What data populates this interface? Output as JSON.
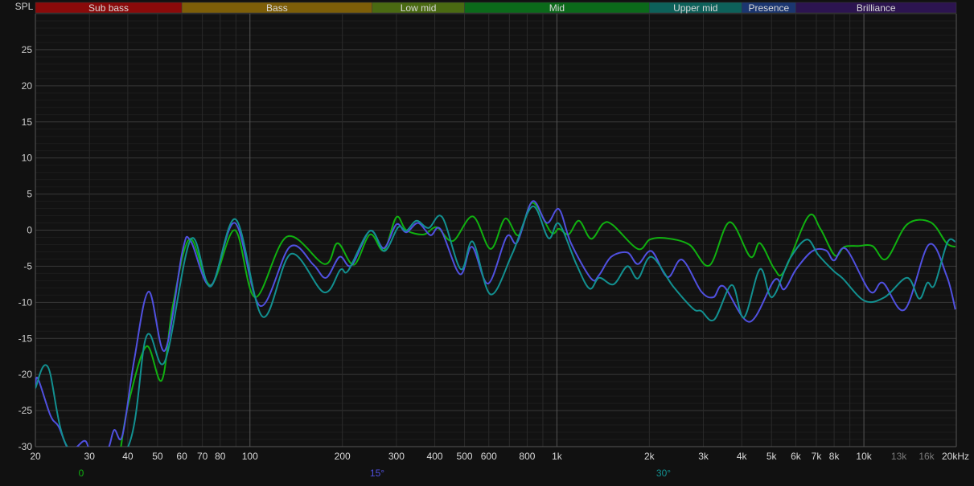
{
  "chart_data": {
    "type": "line",
    "ylabel": "SPL",
    "x_scale": "log",
    "xlim": [
      20,
      20000
    ],
    "ylim": [
      -30,
      30
    ],
    "grid": true,
    "y_ticks": [
      25,
      20,
      15,
      10,
      5,
      0,
      -5,
      -10,
      -15,
      -20,
      -25,
      -30
    ],
    "x_ticks": [
      {
        "value": 20,
        "label": "20"
      },
      {
        "value": 30,
        "label": "30"
      },
      {
        "value": 40,
        "label": "40"
      },
      {
        "value": 50,
        "label": "50"
      },
      {
        "value": 60,
        "label": "60"
      },
      {
        "value": 70,
        "label": "70"
      },
      {
        "value": 80,
        "label": "80"
      },
      {
        "value": 100,
        "label": "100"
      },
      {
        "value": 200,
        "label": "200"
      },
      {
        "value": 300,
        "label": "300"
      },
      {
        "value": 400,
        "label": "400"
      },
      {
        "value": 500,
        "label": "500"
      },
      {
        "value": 600,
        "label": "600"
      },
      {
        "value": 800,
        "label": "800"
      },
      {
        "value": 1000,
        "label": "1k"
      },
      {
        "value": 2000,
        "label": "2k"
      },
      {
        "value": 3000,
        "label": "3k"
      },
      {
        "value": 4000,
        "label": "4k"
      },
      {
        "value": 5000,
        "label": "5k"
      },
      {
        "value": 6000,
        "label": "6k"
      },
      {
        "value": 7000,
        "label": "7k"
      },
      {
        "value": 8000,
        "label": "8k"
      },
      {
        "value": 10000,
        "label": "10k"
      },
      {
        "value": 13000,
        "label": "13k",
        "dim": true
      },
      {
        "value": 16000,
        "label": "16k",
        "dim": true
      },
      {
        "value": 20000,
        "label": "20kHz"
      }
    ],
    "bands": [
      {
        "label": "Sub bass",
        "from": 20,
        "to": 60,
        "color": "#8a0a0a"
      },
      {
        "label": "Bass",
        "from": 60,
        "to": 250,
        "color": "#7d5e08"
      },
      {
        "label": "Low mid",
        "from": 250,
        "to": 500,
        "color": "#4a6a12"
      },
      {
        "label": "Mid",
        "from": 500,
        "to": 2000,
        "color": "#0b6a1a"
      },
      {
        "label": "Upper mid",
        "from": 2000,
        "to": 4000,
        "color": "#0d615a"
      },
      {
        "label": "Presence",
        "from": 4000,
        "to": 6000,
        "color": "#1b3670"
      },
      {
        "label": "Brilliance",
        "from": 6000,
        "to": 20000,
        "color": "#2c1450"
      }
    ],
    "series": [
      {
        "name": "0",
        "color": "#10b010",
        "points": [
          [
            38,
            -30
          ],
          [
            40.3,
            -23.8
          ],
          [
            46,
            -16.1
          ],
          [
            51.6,
            -20.8
          ],
          [
            56.1,
            -10.4
          ],
          [
            63.7,
            -1.2
          ],
          [
            74.5,
            -7.6
          ],
          [
            89.3,
            0
          ],
          [
            104,
            -9.3
          ],
          [
            132,
            -0.9
          ],
          [
            175,
            -4.7
          ],
          [
            193,
            -1.8
          ],
          [
            218,
            -4.8
          ],
          [
            246,
            -0.6
          ],
          [
            273,
            -2.8
          ],
          [
            300,
            1.8
          ],
          [
            323,
            0
          ],
          [
            368,
            -0.6
          ],
          [
            406,
            0.4
          ],
          [
            458,
            -1.5
          ],
          [
            532,
            1.9
          ],
          [
            608,
            -2.6
          ],
          [
            678,
            1.6
          ],
          [
            751,
            -0.7
          ],
          [
            832,
            3.8
          ],
          [
            956,
            -0.3
          ],
          [
            1015,
            0.2
          ],
          [
            1092,
            -0.6
          ],
          [
            1180,
            1.3
          ],
          [
            1292,
            -1.2
          ],
          [
            1414,
            0.9
          ],
          [
            1521,
            0.7
          ],
          [
            1835,
            -2.6
          ],
          [
            2007,
            -1.3
          ],
          [
            2252,
            -1.1
          ],
          [
            2698,
            -2.0
          ],
          [
            3138,
            -4.9
          ],
          [
            3648,
            1.1
          ],
          [
            4266,
            -3.7
          ],
          [
            4588,
            -1.8
          ],
          [
            5114,
            -5.4
          ],
          [
            5496,
            -5.7
          ],
          [
            6589,
            1.9
          ],
          [
            7212,
            0.2
          ],
          [
            8038,
            -3.5
          ],
          [
            8643,
            -2.3
          ],
          [
            9572,
            -2.2
          ],
          [
            10674,
            -2.2
          ],
          [
            11828,
            -4.0
          ],
          [
            13836,
            0.8
          ],
          [
            16480,
            1.1
          ],
          [
            18594,
            -1.8
          ],
          [
            19860,
            -2.3
          ]
        ]
      },
      {
        "name": "15°",
        "color": "#5050e0",
        "points": [
          [
            20,
            -21.5
          ],
          [
            20.4,
            -20.6
          ],
          [
            22.4,
            -25.7
          ],
          [
            23.8,
            -27.2
          ],
          [
            25.9,
            -30.5
          ],
          [
            28.9,
            -29.2
          ],
          [
            30.3,
            -30.5
          ],
          [
            34.2,
            -30.5
          ],
          [
            36.1,
            -27.7
          ],
          [
            38.4,
            -28.5
          ],
          [
            42,
            -17.9
          ],
          [
            46.8,
            -8.5
          ],
          [
            52.8,
            -16.7
          ],
          [
            60.3,
            -2.9
          ],
          [
            64.1,
            -1.5
          ],
          [
            74.5,
            -7.7
          ],
          [
            89.3,
            1.0
          ],
          [
            108,
            -10.5
          ],
          [
            135,
            -2.3
          ],
          [
            161,
            -4.8
          ],
          [
            177,
            -6.6
          ],
          [
            196,
            -3.7
          ],
          [
            214,
            -4.9
          ],
          [
            246,
            -0.1
          ],
          [
            273,
            -2.5
          ],
          [
            300,
            0.8
          ],
          [
            323,
            -0.3
          ],
          [
            353,
            1.0
          ],
          [
            387,
            -0.7
          ],
          [
            418,
            0.1
          ],
          [
            483,
            -6.1
          ],
          [
            529,
            -2.3
          ],
          [
            597,
            -7.4
          ],
          [
            686,
            -0.9
          ],
          [
            742,
            -1.7
          ],
          [
            832,
            4.0
          ],
          [
            927,
            1.0
          ],
          [
            1015,
            2.9
          ],
          [
            1111,
            -1.8
          ],
          [
            1292,
            -6.7
          ],
          [
            1373,
            -6.2
          ],
          [
            1502,
            -3.7
          ],
          [
            1696,
            -3.1
          ],
          [
            1835,
            -4.7
          ],
          [
            2032,
            -2.9
          ],
          [
            2293,
            -6.5
          ],
          [
            2556,
            -4.1
          ],
          [
            2953,
            -8.5
          ],
          [
            3234,
            -9.3
          ],
          [
            3497,
            -7.8
          ],
          [
            4242,
            -12.7
          ],
          [
            5114,
            -6.9
          ],
          [
            5496,
            -8.2
          ],
          [
            6018,
            -5.4
          ],
          [
            6790,
            -2.9
          ],
          [
            7524,
            -2.8
          ],
          [
            7990,
            -4.2
          ],
          [
            8748,
            -2.6
          ],
          [
            10483,
            -8.5
          ],
          [
            11544,
            -7.3
          ],
          [
            13588,
            -11.0
          ],
          [
            16284,
            -2.0
          ],
          [
            18594,
            -6.3
          ],
          [
            19860,
            -11.0
          ]
        ]
      },
      {
        "name": "30°",
        "color": "#129090",
        "points": [
          [
            20,
            -21.9
          ],
          [
            22,
            -19.0
          ],
          [
            25.9,
            -30.5
          ],
          [
            39.5,
            -30.5
          ],
          [
            46,
            -14.7
          ],
          [
            52.8,
            -18.2
          ],
          [
            64.1,
            -1.3
          ],
          [
            74.5,
            -7.8
          ],
          [
            89.8,
            1.5
          ],
          [
            110,
            -12.0
          ],
          [
            136,
            -3.3
          ],
          [
            174,
            -8.6
          ],
          [
            197,
            -5.5
          ],
          [
            209,
            -5.6
          ],
          [
            246,
            -0.1
          ],
          [
            274,
            -2.9
          ],
          [
            304,
            0.4
          ],
          [
            323,
            -0.1
          ],
          [
            349,
            1.3
          ],
          [
            382,
            0.3
          ],
          [
            423,
            1.8
          ],
          [
            486,
            -5.4
          ],
          [
            532,
            -1.6
          ],
          [
            608,
            -8.9
          ],
          [
            715,
            -3.3
          ],
          [
            832,
            3.3
          ],
          [
            939,
            -1.1
          ],
          [
            1015,
            0.9
          ],
          [
            1159,
            -4.8
          ],
          [
            1277,
            -8.1
          ],
          [
            1373,
            -6.6
          ],
          [
            1530,
            -7.5
          ],
          [
            1696,
            -5.0
          ],
          [
            1835,
            -6.7
          ],
          [
            2032,
            -3.7
          ],
          [
            2392,
            -7.8
          ],
          [
            2780,
            -10.9
          ],
          [
            2953,
            -11.2
          ],
          [
            3253,
            -12.4
          ],
          [
            3714,
            -7.6
          ],
          [
            4066,
            -12.1
          ],
          [
            4588,
            -5.4
          ],
          [
            5022,
            -9.3
          ],
          [
            5734,
            -4.0
          ],
          [
            6510,
            -1.3
          ],
          [
            7126,
            -3.5
          ],
          [
            7990,
            -5.7
          ],
          [
            8538,
            -6.7
          ],
          [
            10050,
            -9.8
          ],
          [
            11686,
            -9.3
          ],
          [
            13836,
            -6.6
          ],
          [
            15145,
            -9.5
          ],
          [
            16088,
            -7.3
          ],
          [
            16980,
            -7.6
          ],
          [
            18700,
            -1.7
          ],
          [
            19860,
            -1.6
          ]
        ]
      }
    ],
    "legend_placement": "bottom"
  }
}
